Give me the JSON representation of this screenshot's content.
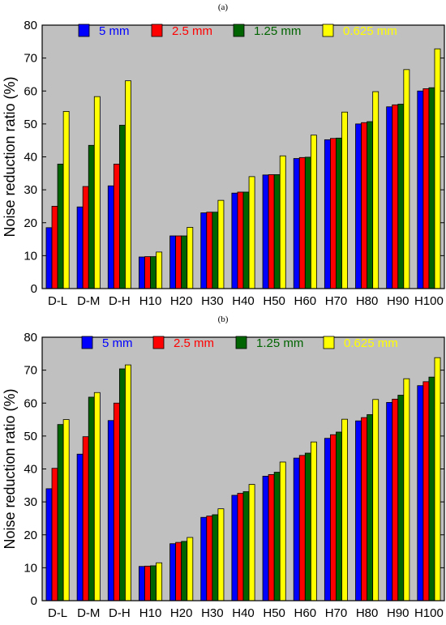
{
  "chart_data": [
    {
      "type": "bar",
      "panel_label": "(a)",
      "ylabel": "Noise reduction ratio (%)",
      "ylim": [
        0,
        80
      ],
      "yticks": [
        0,
        10,
        20,
        30,
        40,
        50,
        60,
        70,
        80
      ],
      "categories": [
        "D-L",
        "D-M",
        "D-H",
        "H10",
        "H20",
        "H30",
        "H40",
        "H50",
        "H60",
        "H70",
        "H80",
        "H90",
        "H100"
      ],
      "grid": false,
      "legend_position": "top",
      "series": [
        {
          "name": "5 mm",
          "color": "#0000ff",
          "values": [
            18.5,
            24.8,
            31.2,
            9.6,
            16.0,
            23.0,
            29.0,
            34.5,
            39.5,
            45.2,
            50.0,
            55.2,
            60.0
          ]
        },
        {
          "name": "2.5 mm",
          "color": "#ff0000",
          "values": [
            25.0,
            31.0,
            37.8,
            9.7,
            16.0,
            23.2,
            29.3,
            34.6,
            39.8,
            45.6,
            50.4,
            55.8,
            60.7
          ]
        },
        {
          "name": "1.25 mm",
          "color": "#006400",
          "values": [
            37.8,
            43.5,
            49.6,
            9.7,
            16.0,
            23.2,
            29.3,
            34.6,
            39.9,
            45.7,
            50.7,
            56.0,
            61.0
          ]
        },
        {
          "name": "0.625 mm",
          "color": "#ffff00",
          "values": [
            53.8,
            58.3,
            63.1,
            11.1,
            18.6,
            26.8,
            34.0,
            40.3,
            46.6,
            53.6,
            59.8,
            66.5,
            72.8
          ]
        }
      ]
    },
    {
      "type": "bar",
      "panel_label": "(b)",
      "ylabel": "Noise reduction ratio (%)",
      "ylim": [
        0,
        80
      ],
      "yticks": [
        0,
        10,
        20,
        30,
        40,
        50,
        60,
        70,
        80
      ],
      "categories": [
        "D-L",
        "D-M",
        "D-H",
        "H10",
        "H20",
        "H30",
        "H40",
        "H50",
        "H60",
        "H70",
        "H80",
        "H90",
        "H100"
      ],
      "grid": false,
      "legend_position": "top",
      "series": [
        {
          "name": "5 mm",
          "color": "#0000ff",
          "values": [
            34.0,
            44.5,
            54.7,
            10.4,
            17.3,
            25.3,
            32.0,
            37.8,
            43.3,
            49.3,
            54.6,
            60.2,
            65.3
          ]
        },
        {
          "name": "2.5 mm",
          "color": "#ff0000",
          "values": [
            40.2,
            49.8,
            60.0,
            10.5,
            17.7,
            25.7,
            32.6,
            38.3,
            44.1,
            50.4,
            55.6,
            61.2,
            66.5
          ]
        },
        {
          "name": "1.25 mm",
          "color": "#006400",
          "values": [
            53.5,
            61.8,
            70.4,
            10.6,
            18.0,
            26.1,
            33.1,
            39.0,
            44.8,
            51.2,
            56.5,
            62.4,
            67.9
          ]
        },
        {
          "name": "0.625 mm",
          "color": "#ffff00",
          "values": [
            55.0,
            63.2,
            71.6,
            11.5,
            19.2,
            27.9,
            35.3,
            42.1,
            48.2,
            55.1,
            61.1,
            67.4,
            73.8
          ]
        }
      ]
    }
  ]
}
